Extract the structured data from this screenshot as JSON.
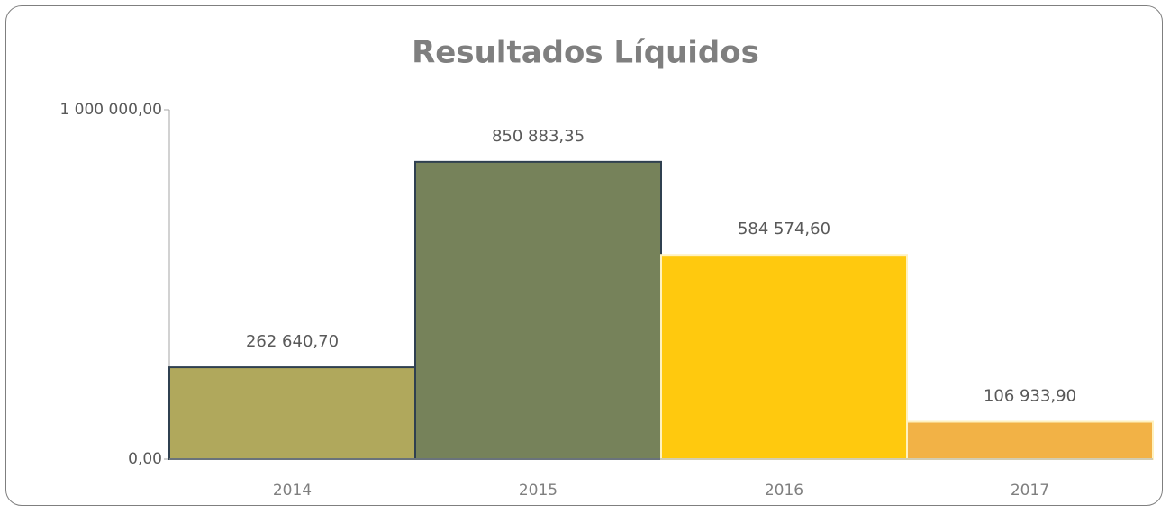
{
  "chart_data": {
    "type": "bar",
    "title": "Resultados Líquidos",
    "categories": [
      "2014",
      "2015",
      "2016",
      "2017"
    ],
    "values": [
      262640.7,
      850883.35,
      584574.6,
      106933.9
    ],
    "value_labels": [
      "262 640,70",
      "850 883,35",
      "584 574,60",
      "106 933,90"
    ],
    "colors": [
      "#b0a85c",
      "#76825a",
      "#ffc90e",
      "#f2b246"
    ],
    "ylim": [
      0,
      1000000
    ],
    "yticks": [
      {
        "value": 0,
        "label": "0,00"
      },
      {
        "value": 1000000,
        "label": "1 000 000,00"
      }
    ]
  }
}
